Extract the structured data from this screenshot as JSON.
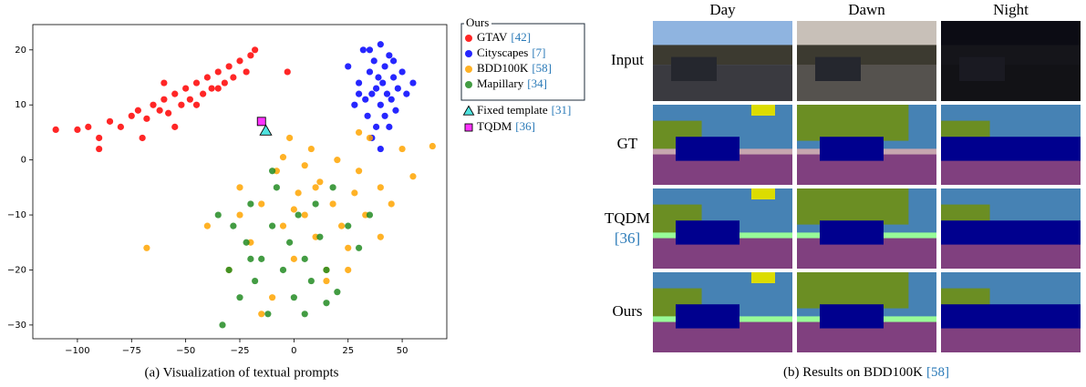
{
  "chart_data": {
    "type": "scatter",
    "legend_title": "Ours",
    "xlim": [
      -120.6,
      70.6
    ],
    "ylim": [
      -32.5,
      24.6
    ],
    "xticks": [
      {
        "value": -100,
        "label": "−100"
      },
      {
        "value": -75,
        "label": "−75"
      },
      {
        "value": -50,
        "label": "−50"
      },
      {
        "value": -25,
        "label": "−25"
      },
      0,
      25,
      50
    ],
    "yticks": [
      {
        "value": -30,
        "label": "−30"
      },
      {
        "value": -20,
        "label": "−20"
      },
      {
        "value": -10,
        "label": "−10"
      },
      0,
      10,
      20
    ],
    "series": [
      {
        "name": "GTAV",
        "citation": "[42]",
        "color": "#ff0000",
        "marker": "o",
        "x": [
          -110,
          -100,
          -95,
          -90,
          -85,
          -80,
          -75,
          -72,
          -68,
          -65,
          -62,
          -60,
          -58,
          -55,
          -52,
          -50,
          -48,
          -45,
          -42,
          -40,
          -38,
          -35,
          -32,
          -30,
          -28,
          -25,
          -22,
          -20,
          -18,
          -90,
          -70,
          -55,
          -45,
          -35,
          -60,
          -3
        ],
        "values": [
          5.5,
          5.5,
          6,
          4,
          7,
          6,
          8,
          9,
          7.5,
          10,
          9,
          11,
          8.5,
          12,
          10,
          13,
          11,
          14,
          12,
          15,
          13,
          16,
          14,
          17,
          15,
          18,
          16,
          19,
          20,
          2,
          4,
          6,
          10,
          13,
          14,
          16
        ]
      },
      {
        "name": "Cityscapes",
        "citation": "[7]",
        "color": "#0000ff",
        "marker": "o",
        "x": [
          25,
          28,
          30,
          32,
          34,
          35,
          36,
          37,
          38,
          38,
          39,
          40,
          40,
          41,
          42,
          42,
          43,
          44,
          45,
          46,
          47,
          48,
          50,
          52,
          55,
          30,
          36,
          44,
          40,
          35,
          46,
          33
        ],
        "values": [
          17,
          10,
          14,
          20,
          8,
          16,
          12,
          18,
          6,
          13,
          15,
          10,
          21,
          14,
          8,
          17,
          12,
          19,
          11,
          15,
          9,
          13,
          16,
          12,
          14,
          12,
          4,
          6,
          2,
          20,
          18,
          11
        ]
      },
      {
        "name": "BDD100K",
        "citation": "[58]",
        "color": "#ffa500",
        "marker": "o",
        "x": [
          -40,
          -30,
          -25,
          -20,
          -15,
          -10,
          -8,
          -5,
          -2,
          0,
          2,
          5,
          8,
          10,
          12,
          15,
          18,
          20,
          22,
          25,
          28,
          30,
          33,
          35,
          40,
          45,
          50,
          55,
          64,
          -68,
          -5,
          15,
          30,
          -15,
          5,
          25,
          -25,
          10,
          40,
          0
        ],
        "values": [
          -12,
          -20,
          -5,
          -15,
          -8,
          -25,
          -2,
          -12,
          4,
          -18,
          -6,
          -10,
          2,
          -14,
          -4,
          -20,
          -8,
          0,
          -12,
          -16,
          -6,
          -2,
          -10,
          4,
          -5,
          -8,
          2,
          -3,
          2.5,
          -16,
          0.5,
          -22,
          5,
          -28,
          -1,
          -20,
          -10,
          -5,
          -14,
          -9
        ]
      },
      {
        "name": "Mapillary",
        "citation": "[34]",
        "color": "#228b22",
        "marker": "o",
        "x": [
          -35,
          -30,
          -28,
          -25,
          -22,
          -20,
          -18,
          -15,
          -12,
          -10,
          -8,
          -5,
          -2,
          0,
          2,
          5,
          8,
          10,
          12,
          15,
          18,
          20,
          25,
          30,
          35,
          -33,
          -10,
          5,
          -20,
          15
        ],
        "values": [
          -10,
          -20,
          -12,
          -25,
          -15,
          -8,
          -22,
          -18,
          -28,
          -12,
          -5,
          -20,
          -15,
          -25,
          -10,
          -18,
          -22,
          -8,
          -14,
          -20,
          -5,
          -24,
          -12,
          -16,
          -10,
          -30,
          -2,
          -28,
          -18,
          -26
        ]
      },
      {
        "name": "Fixed template",
        "citation": "[31]",
        "color": "#4fe3df",
        "marker": "^",
        "x": [
          -13
        ],
        "values": [
          5.3
        ]
      },
      {
        "name": "TQDM",
        "citation": "[36]",
        "color": "#ff33ff",
        "marker": "s",
        "x": [
          -15
        ],
        "values": [
          7
        ]
      }
    ],
    "caption": "(a) Visualization of textual prompts"
  },
  "panel_b": {
    "columns": [
      "Day",
      "Dawn",
      "Night"
    ],
    "rows": [
      {
        "label": "Input"
      },
      {
        "label": "GT"
      },
      {
        "label": "TQDM",
        "citation": "[36]"
      },
      {
        "label": "Ours"
      }
    ],
    "caption": {
      "text": "(b) Results on BDD100K",
      "citation": "[58]"
    }
  }
}
